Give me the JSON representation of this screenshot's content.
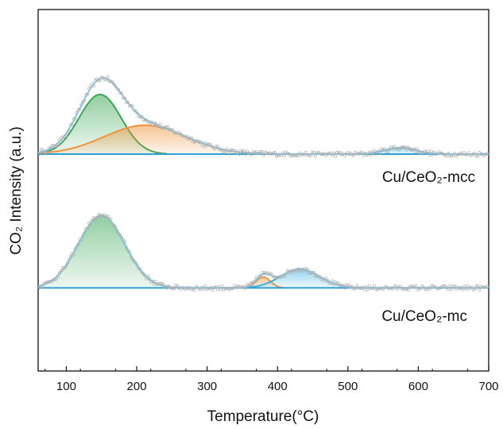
{
  "chart_data": {
    "type": "area",
    "title": "",
    "xlabel": "Temperature(°C)",
    "ylabel": "CO₂ Intensity (a.u.)",
    "xlim": [
      60,
      700
    ],
    "x_ticks": [
      100,
      200,
      300,
      400,
      500,
      600,
      700
    ],
    "y_ticks": [],
    "grid": false,
    "panels": [
      {
        "label": "Cu/CeO₂-mcc",
        "baseline": 0.6,
        "peaks": [
          {
            "center": 148,
            "height": 0.165,
            "width": 30,
            "color": "#3aa655"
          },
          {
            "center": 212,
            "height": 0.08,
            "width": 58,
            "color": "#f0933a"
          },
          {
            "center": 575,
            "height": 0.018,
            "width": 22,
            "color": "#3ab0e0"
          }
        ]
      },
      {
        "label": "Cu/CeO₂-mc",
        "baseline": 0.23,
        "peaks": [
          {
            "center": 150,
            "height": 0.2,
            "width": 33,
            "color": "#3aa655"
          },
          {
            "center": 380,
            "height": 0.03,
            "width": 10,
            "color": "#f0933a"
          },
          {
            "center": 432,
            "height": 0.052,
            "width": 28,
            "color": "#3ab0e0"
          }
        ]
      }
    ],
    "fit_color": "#7fc8e8",
    "data_point_color": "#b0b0b0"
  }
}
